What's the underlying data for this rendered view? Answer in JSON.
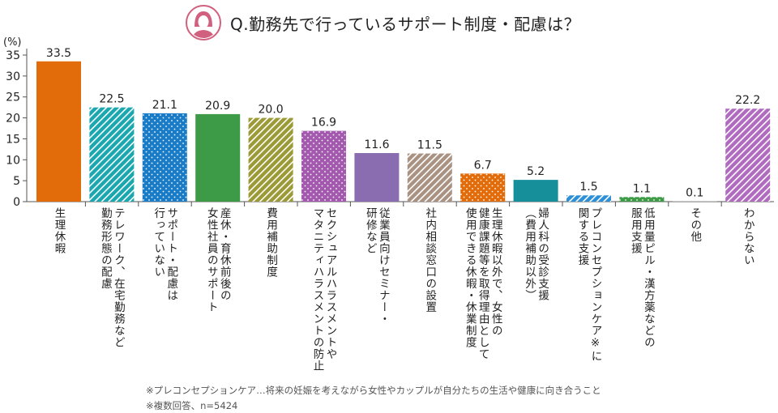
{
  "chart_data": {
    "type": "bar",
    "title": "Q.勤務先で行っているサポート制度・配慮は？",
    "ylabel": "(%)",
    "ylim": [
      0,
      35
    ],
    "yticks": [
      0,
      5,
      10,
      15,
      20,
      25,
      30,
      35
    ],
    "grid": false,
    "categories": [
      "生理休暇",
      "テレワーク、在宅勤務など\n勤務形態の配慮",
      "サポート・配慮は\n行っていない",
      "産休・育休前後の\n女性社員のサポート",
      "費用補助制度",
      "セクシュアルハラスメントや\nマタニティハラスメントの防止",
      "従業員向けセミナー・\n研修など",
      "社内相談窓口の設置",
      "生理休暇以外で、女性の\n健康課題等を取得理由として\n使用できる休暇・休業制度",
      "婦人科の受診支援\n（費用補助以外）",
      "プレコンセプションケア※に\n関する支援",
      "低用量ピル・漢方薬などの\n服用支援",
      "その他",
      "わからない"
    ],
    "values": [
      33.5,
      22.5,
      21.1,
      20.9,
      20.0,
      16.9,
      11.6,
      11.5,
      6.7,
      5.2,
      1.5,
      1.1,
      0.1,
      22.2
    ],
    "value_labels": [
      "33.5",
      "22.5",
      "21.1",
      "20.9",
      "20.0",
      "16.9",
      "11.6",
      "11.5",
      "6.7",
      "5.2",
      "1.5",
      "1.1",
      "0.1",
      "22.2"
    ],
    "colors": [
      "#e36c0a",
      "#1aa7b0",
      "#1a7cc6",
      "#3d9a47",
      "#9b9a36",
      "#a35aae",
      "#8a6db0",
      "#a99282",
      "#e36c0a",
      "#168f9a",
      "#2d8fd6",
      "#3d9a47",
      "#999999",
      "#b06abf"
    ],
    "fills": [
      "solid",
      "stripe",
      "dots",
      "solid",
      "stripe",
      "dots",
      "solid",
      "stripe",
      "dots",
      "solid",
      "stripe",
      "dots",
      "solid",
      "stripe"
    ]
  },
  "header": {
    "icon": "woman-avatar-icon",
    "icon_color": "#d0607e"
  },
  "notes": [
    "※プレコンセプションケア…将来の妊娠を考えながら女性やカップルが自分たちの生活や健康に向き合うこと",
    "※複数回答、n=5424"
  ]
}
